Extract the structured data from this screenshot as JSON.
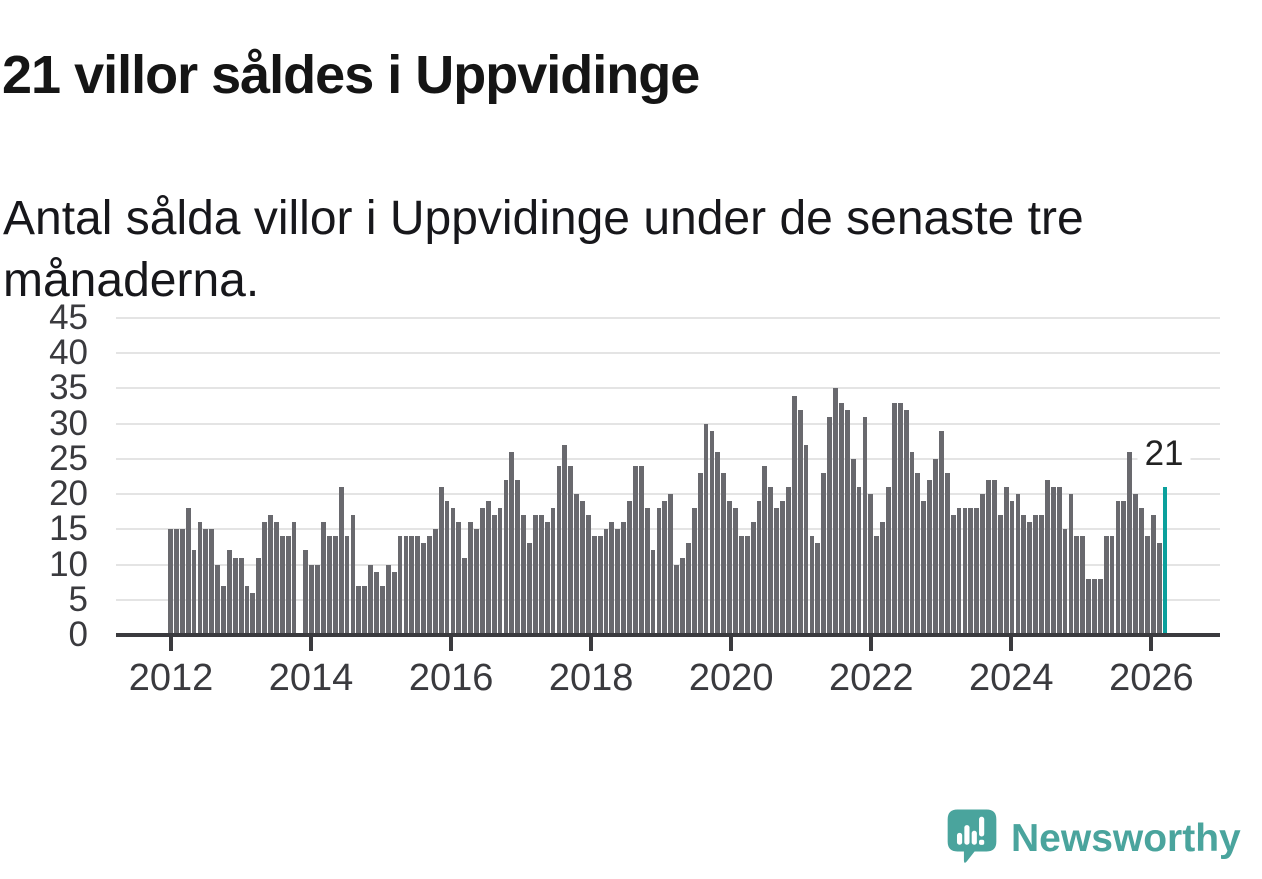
{
  "header": {
    "title": "21 villor såldes i Uppvidinge",
    "subtitle": "Antal sålda villor i Uppvidinge under de senaste tre månaderna.",
    "subtitle_lines": [
      "Antal sålda villor i Uppvidinge under de senaste tre",
      "månaderna."
    ]
  },
  "footer": {
    "brand": "Newsworthy",
    "logo_icon": "speech-bubble-bar-chart-icon"
  },
  "colors": {
    "background": "#ffffff",
    "bar": "#69696e",
    "highlight": "#0ba09c",
    "grid": "#e4e4e4",
    "axis": "#3a3a3e",
    "tick_label": "#3a3a3e",
    "title_text": "#151515",
    "annotation_text": "#222222",
    "brand": "#4aa49d"
  },
  "chart_data": {
    "type": "bar",
    "x_start": "2012-01",
    "frequency": "monthly",
    "values": [
      15,
      15,
      15,
      18,
      12,
      16,
      15,
      15,
      10,
      7,
      12,
      11,
      11,
      7,
      6,
      11,
      16,
      17,
      16,
      14,
      14,
      16,
      0,
      12,
      10,
      10,
      16,
      14,
      14,
      21,
      14,
      17,
      7,
      7,
      10,
      9,
      7,
      10,
      9,
      14,
      14,
      14,
      14,
      13,
      14,
      15,
      21,
      19,
      18,
      16,
      11,
      16,
      15,
      18,
      19,
      17,
      18,
      22,
      26,
      22,
      17,
      13,
      17,
      17,
      16,
      18,
      24,
      27,
      24,
      20,
      19,
      17,
      14,
      14,
      15,
      16,
      15,
      16,
      19,
      24,
      24,
      18,
      12,
      18,
      19,
      20,
      10,
      11,
      13,
      18,
      23,
      30,
      29,
      26,
      23,
      19,
      18,
      14,
      14,
      16,
      19,
      24,
      21,
      18,
      19,
      21,
      34,
      32,
      27,
      14,
      13,
      23,
      31,
      35,
      33,
      32,
      25,
      21,
      31,
      20,
      14,
      16,
      21,
      33,
      33,
      32,
      26,
      23,
      19,
      22,
      25,
      29,
      23,
      17,
      18,
      18,
      18,
      18,
      20,
      22,
      22,
      17,
      21,
      19,
      20,
      17,
      16,
      17,
      17,
      22,
      21,
      21,
      15,
      20,
      14,
      14,
      8,
      8,
      8,
      14,
      14,
      19,
      19,
      26,
      20,
      18,
      14,
      17,
      13,
      21
    ],
    "x_tick_labels": [
      "2012",
      "2014",
      "2016",
      "2018",
      "2020",
      "2022",
      "2024",
      "2026"
    ],
    "y_tick_labels": [
      0,
      5,
      10,
      15,
      20,
      25,
      30,
      35,
      40,
      45
    ],
    "ylim": [
      0,
      45
    ],
    "grid": "horizontal",
    "legend": "none",
    "highlight": {
      "index": 169,
      "value": 21,
      "label": "21"
    }
  }
}
